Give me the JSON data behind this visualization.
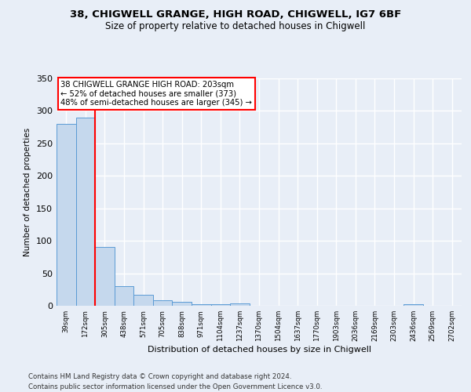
{
  "title1": "38, CHIGWELL GRANGE, HIGH ROAD, CHIGWELL, IG7 6BF",
  "title2": "Size of property relative to detached houses in Chigwell",
  "xlabel": "Distribution of detached houses by size in Chigwell",
  "ylabel": "Number of detached properties",
  "footnote1": "Contains HM Land Registry data © Crown copyright and database right 2024.",
  "footnote2": "Contains public sector information licensed under the Open Government Licence v3.0.",
  "bin_labels": [
    "39sqm",
    "172sqm",
    "305sqm",
    "438sqm",
    "571sqm",
    "705sqm",
    "838sqm",
    "971sqm",
    "1104sqm",
    "1237sqm",
    "1370sqm",
    "1504sqm",
    "1637sqm",
    "1770sqm",
    "1903sqm",
    "2036sqm",
    "2169sqm",
    "2303sqm",
    "2436sqm",
    "2569sqm",
    "2702sqm"
  ],
  "bar_heights": [
    280,
    290,
    90,
    30,
    17,
    8,
    6,
    3,
    3,
    4,
    0,
    0,
    0,
    0,
    0,
    0,
    0,
    0,
    3,
    0,
    0
  ],
  "bar_color": "#c5d8ed",
  "bar_edge_color": "#5b9bd5",
  "vline_x": 1.5,
  "vline_color": "red",
  "annotation_text": "38 CHIGWELL GRANGE HIGH ROAD: 203sqm\n← 52% of detached houses are smaller (373)\n48% of semi-detached houses are larger (345) →",
  "annotation_box_color": "white",
  "annotation_box_edge": "red",
  "ylim": [
    0,
    350
  ],
  "yticks": [
    0,
    50,
    100,
    150,
    200,
    250,
    300,
    350
  ],
  "background_color": "#e8eef7",
  "plot_bg_color": "#e8eef7",
  "grid_color": "white"
}
